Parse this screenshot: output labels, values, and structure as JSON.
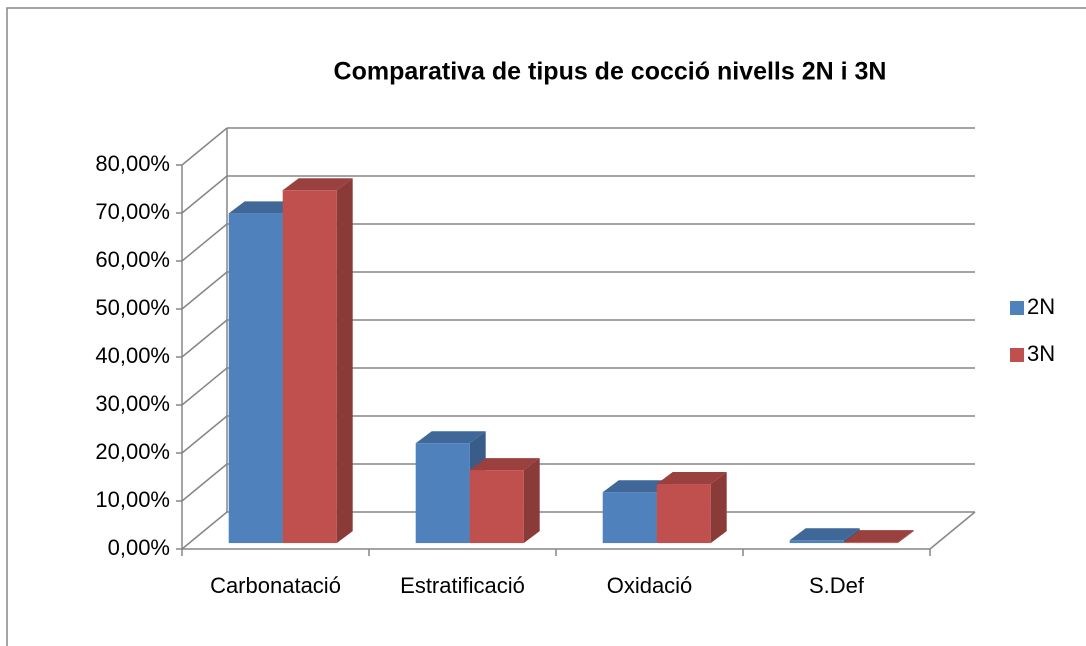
{
  "chart_data": {
    "type": "bar3d",
    "title": "Comparativa de tipus de cocció nivells 2N i 3N",
    "categories": [
      "Carbonatació",
      "Estratificació",
      "Oxidació",
      "S.Def"
    ],
    "series": [
      {
        "name": "2N",
        "color": "#4f81bd",
        "values": [
          68.7,
          20.8,
          10.6,
          0.6
        ]
      },
      {
        "name": "3N",
        "color": "#c0504d",
        "values": [
          73.5,
          15.2,
          12.3,
          0.2
        ]
      }
    ],
    "ylim": [
      0,
      80
    ],
    "yticks": [
      {
        "value": 0,
        "label": "0,00%"
      },
      {
        "value": 10,
        "label": "10,00%"
      },
      {
        "value": 20,
        "label": "20,00%"
      },
      {
        "value": 30,
        "label": "30,00%"
      },
      {
        "value": 40,
        "label": "40,00%"
      },
      {
        "value": 50,
        "label": "50,00%"
      },
      {
        "value": 60,
        "label": "60,00%"
      },
      {
        "value": 70,
        "label": "70,00%"
      },
      {
        "value": 80,
        "label": "80,00%"
      }
    ],
    "grid": true,
    "legend": "right"
  }
}
